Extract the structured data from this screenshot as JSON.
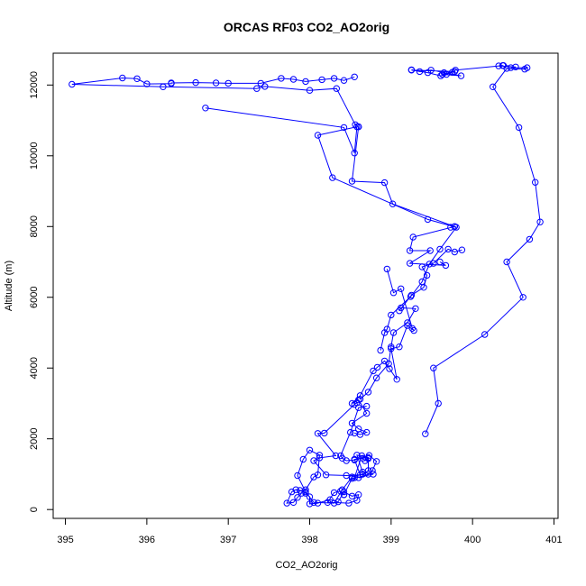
{
  "chart_data": {
    "type": "line",
    "title": "ORCAS RF03 CO2_AO2orig",
    "xlabel": "CO2_AO2orig",
    "ylabel": "Altitude (m)",
    "xlim": [
      394.85,
      401.05
    ],
    "ylim": [
      -250,
      12900
    ],
    "xticks": [
      "395",
      "396",
      "397",
      "398",
      "399",
      "400",
      "401"
    ],
    "yticks": [
      "0",
      "2000",
      "4000",
      "6000",
      "8000",
      "10000",
      "12000"
    ],
    "xtick_values": [
      395,
      396,
      397,
      398,
      399,
      400,
      401
    ],
    "ytick_values": [
      0,
      2000,
      4000,
      6000,
      8000,
      10000,
      12000
    ],
    "grid": false,
    "marker": "open-circle",
    "color": "#0000ff",
    "series": [
      {
        "x": [
          399.42,
          399.58,
          399.52,
          400.15,
          400.62,
          400.42,
          400.7,
          400.83,
          400.77,
          400.57,
          400.25,
          400.42,
          400.64,
          400.67,
          400.47,
          400.53,
          400.32,
          400.38
        ],
        "y": [
          2140,
          3000,
          4000,
          4950,
          6000,
          7000,
          7640,
          8130,
          9250,
          10800,
          11950,
          12470,
          12450,
          12490,
          12490,
          12510,
          12540,
          12550
        ]
      },
      {
        "x": [
          400.37,
          399.79,
          399.75,
          399.68,
          399.61,
          399.45,
          399.25,
          399.78,
          399.63,
          399.86,
          399.65,
          399.49,
          399.35,
          399.25
        ],
        "y": [
          12550,
          12420,
          12360,
          12300,
          12260,
          12350,
          12420,
          12380,
          12300,
          12260,
          12350,
          12420,
          12380,
          12430
        ]
      },
      {
        "x": [
          398.55,
          398.42,
          398.3,
          398.15,
          397.95,
          397.8,
          397.65,
          397.4,
          397.0,
          396.85,
          396.6,
          396.3,
          396.3,
          396.0,
          395.88,
          395.7,
          395.08,
          396.2,
          397.35,
          397.45,
          398.0,
          398.33,
          398.56,
          398.6
        ],
        "y": [
          12230,
          12130,
          12190,
          12150,
          12100,
          12160,
          12190,
          12050,
          12050,
          12060,
          12070,
          12060,
          12040,
          12030,
          12180,
          12200,
          12020,
          11950,
          11900,
          11960,
          11850,
          11900,
          10880,
          10820
        ]
      },
      {
        "x": [
          398.6,
          398.52,
          398.92,
          399.02,
          399.78,
          399.73,
          399.78,
          399.27,
          399.23,
          399.48,
          399.23,
          399.67,
          399.6
        ],
        "y": [
          10820,
          9280,
          9240,
          8640,
          8000,
          7980,
          8000,
          7700,
          7320,
          7320,
          6960,
          6900,
          7000
        ]
      },
      {
        "x": [
          396.72,
          398.42,
          398.55,
          398.58,
          398.1,
          398.28,
          399.45,
          399.8,
          399.6,
          399.47,
          399.38,
          399.24,
          399.0,
          398.95,
          398.92,
          398.87
        ],
        "y": [
          11350,
          10800,
          10080,
          10820,
          10580,
          9380,
          8200,
          7980,
          7360,
          6940,
          6440,
          6020,
          5500,
          5100,
          5000,
          4500
        ]
      },
      {
        "x": [
          399.87,
          399.78,
          399.7,
          399.52,
          399.38,
          399.44,
          399.4,
          399.25,
          399.1,
          399.12,
          399.3,
          399.2,
          399.03,
          399.0,
          398.97,
          398.82,
          398.72,
          398.62
        ],
        "y": [
          7340,
          7280,
          7360,
          6960,
          6860,
          6620,
          6280,
          6060,
          5620,
          5700,
          5680,
          5280,
          5000,
          4600,
          4120,
          3720,
          3320,
          3120
        ]
      },
      {
        "x": [
          398.95,
          399.03,
          399.12,
          399.26,
          399.28,
          399.2,
          399.1,
          399.0,
          399.07,
          398.98,
          398.92,
          398.83,
          398.78,
          398.62,
          398.52,
          398.6,
          398.7,
          398.52,
          398.6,
          398.7,
          398.62,
          398.55
        ],
        "y": [
          6800,
          6130,
          6240,
          5120,
          5060,
          5200,
          4600,
          4550,
          3680,
          3980,
          4200,
          4020,
          3920,
          3220,
          3000,
          3100,
          2720,
          2440,
          2280,
          2180,
          2120,
          2160
        ]
      },
      {
        "x": [
          398.58,
          398.55,
          398.18,
          398.1,
          398.32,
          398.12,
          398.05,
          398.2,
          398.45,
          398.62,
          398.55,
          398.65,
          398.68,
          398.72,
          398.58,
          398.65,
          398.78,
          398.52,
          398.42
        ],
        "y": [
          3020,
          2970,
          2160,
          2150,
          1520,
          1460,
          1380,
          980,
          960,
          980,
          1420,
          1450,
          1380,
          1470,
          1540,
          1060,
          1000,
          880,
          420
        ]
      },
      {
        "x": [
          398.42,
          398.38,
          398.3,
          398.22,
          398.48,
          398.58,
          398.6,
          398.52,
          398.42,
          398.35,
          398.25,
          398.1,
          398.0,
          398.0,
          397.95,
          397.88,
          397.83,
          397.78,
          397.72,
          397.8,
          397.85,
          397.9
        ],
        "y": [
          420,
          520,
          480,
          200,
          180,
          260,
          420,
          380,
          500,
          220,
          280,
          180,
          160,
          360,
          460,
          540,
          560,
          500,
          180,
          200,
          340,
          460
        ]
      },
      {
        "x": [
          397.95,
          398.05,
          398.1,
          398.12,
          398.0,
          397.92,
          397.85,
          397.95,
          398.05,
          398.3,
          398.4,
          398.52,
          398.65,
          398.72,
          398.72,
          398.64,
          398.55
        ],
        "y": [
          560,
          920,
          980,
          1540,
          1680,
          1420,
          960,
          500,
          200,
          180,
          560,
          920,
          1000,
          1100,
          1440,
          1520,
          900
        ]
      },
      {
        "x": [
          398.6,
          398.72,
          398.77,
          398.82,
          398.73,
          398.55,
          398.45,
          398.4,
          398.38,
          398.5,
          398.6,
          398.7
        ],
        "y": [
          900,
          1000,
          1100,
          1360,
          1530,
          1400,
          1380,
          1450,
          1520,
          2180,
          2880,
          2920
        ]
      }
    ]
  }
}
